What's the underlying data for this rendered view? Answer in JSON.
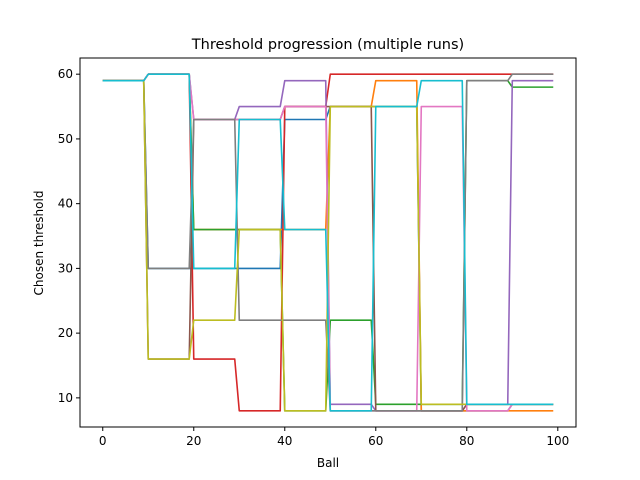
{
  "chart_data": {
    "type": "line",
    "title": "Threshold progression (multiple runs)",
    "xlabel": "Ball",
    "ylabel": "Chosen threshold",
    "xlim": [
      -5,
      104
    ],
    "ylim": [
      5.5,
      62.5
    ],
    "xticks": [
      0,
      20,
      40,
      60,
      80,
      100
    ],
    "yticks": [
      10,
      20,
      30,
      40,
      50,
      60
    ],
    "grid": false,
    "series": [
      {
        "color": "#1f77b4",
        "x": [
          0,
          9,
          10,
          19,
          20,
          29,
          30,
          39,
          40,
          49,
          50,
          59,
          60,
          69,
          70,
          79,
          80,
          89,
          90,
          99
        ],
        "y": [
          59,
          59,
          30,
          30,
          30,
          30,
          30,
          30,
          53,
          53,
          55,
          55,
          55,
          55,
          8,
          8,
          8,
          8,
          9,
          9
        ]
      },
      {
        "color": "#ff7f0e",
        "x": [
          0,
          9,
          10,
          19,
          20,
          29,
          30,
          39,
          40,
          49,
          50,
          59,
          60,
          69,
          70,
          79,
          80,
          89,
          90,
          99
        ],
        "y": [
          59,
          59,
          60,
          60,
          36,
          36,
          36,
          36,
          36,
          36,
          55,
          55,
          59,
          59,
          8,
          8,
          8,
          8,
          8,
          8
        ]
      },
      {
        "color": "#2ca02c",
        "x": [
          0,
          9,
          10,
          19,
          20,
          29,
          30,
          39,
          40,
          49,
          50,
          59,
          60,
          69,
          70,
          79,
          80,
          89,
          90,
          99
        ],
        "y": [
          59,
          59,
          60,
          60,
          36,
          36,
          36,
          36,
          8,
          8,
          22,
          22,
          9,
          9,
          9,
          9,
          59,
          59,
          58,
          58
        ]
      },
      {
        "color": "#d62728",
        "x": [
          0,
          9,
          10,
          19,
          20,
          29,
          30,
          39,
          40,
          49,
          50,
          59,
          60,
          69,
          70,
          79,
          80,
          89,
          90,
          99
        ],
        "y": [
          59,
          59,
          60,
          60,
          16,
          16,
          8,
          8,
          55,
          55,
          60,
          60,
          60,
          60,
          60,
          60,
          60,
          60,
          60,
          60
        ]
      },
      {
        "color": "#9467bd",
        "x": [
          0,
          9,
          10,
          19,
          20,
          29,
          30,
          39,
          40,
          49,
          50,
          59,
          60,
          69,
          70,
          79,
          80,
          89,
          90,
          99
        ],
        "y": [
          59,
          59,
          60,
          60,
          53,
          53,
          55,
          55,
          59,
          59,
          9,
          9,
          8,
          8,
          8,
          8,
          9,
          9,
          59,
          59
        ]
      },
      {
        "color": "#8c564b",
        "x": [
          0,
          9,
          10,
          19,
          20,
          29,
          30,
          39,
          40,
          49,
          50,
          59,
          60,
          69,
          70,
          79,
          80,
          89,
          90,
          99
        ],
        "y": [
          59,
          59,
          16,
          16,
          53,
          53,
          53,
          53,
          55,
          55,
          55,
          55,
          8,
          8,
          8,
          8,
          9,
          9,
          9,
          9
        ]
      },
      {
        "color": "#e377c2",
        "x": [
          0,
          9,
          10,
          19,
          20,
          29,
          30,
          39,
          40,
          49,
          50,
          59,
          60,
          69,
          70,
          79,
          80,
          89,
          90,
          99
        ],
        "y": [
          59,
          59,
          60,
          60,
          53,
          53,
          53,
          53,
          55,
          55,
          8,
          8,
          8,
          8,
          55,
          55,
          8,
          8,
          9,
          9
        ]
      },
      {
        "color": "#7f7f7f",
        "x": [
          0,
          9,
          10,
          19,
          20,
          29,
          30,
          39,
          40,
          49,
          50,
          59,
          60,
          69,
          70,
          79,
          80,
          89,
          90,
          99
        ],
        "y": [
          59,
          59,
          30,
          30,
          53,
          53,
          22,
          22,
          22,
          22,
          8,
          8,
          8,
          8,
          8,
          8,
          59,
          59,
          60,
          60
        ]
      },
      {
        "color": "#bcbd22",
        "x": [
          0,
          9,
          10,
          19,
          20,
          29,
          30,
          39,
          40,
          49,
          50,
          59,
          60,
          69,
          70,
          79,
          80,
          89,
          90,
          99
        ],
        "y": [
          59,
          59,
          16,
          16,
          22,
          22,
          36,
          36,
          8,
          8,
          55,
          55,
          55,
          55,
          9,
          9,
          9,
          9,
          9,
          9
        ]
      },
      {
        "color": "#17becf",
        "x": [
          0,
          9,
          10,
          19,
          20,
          29,
          30,
          39,
          40,
          49,
          50,
          59,
          60,
          69,
          70,
          79,
          80,
          89,
          90,
          99
        ],
        "y": [
          59,
          59,
          60,
          60,
          30,
          30,
          53,
          53,
          36,
          36,
          8,
          8,
          55,
          55,
          59,
          59,
          9,
          9,
          9,
          9
        ]
      }
    ]
  }
}
